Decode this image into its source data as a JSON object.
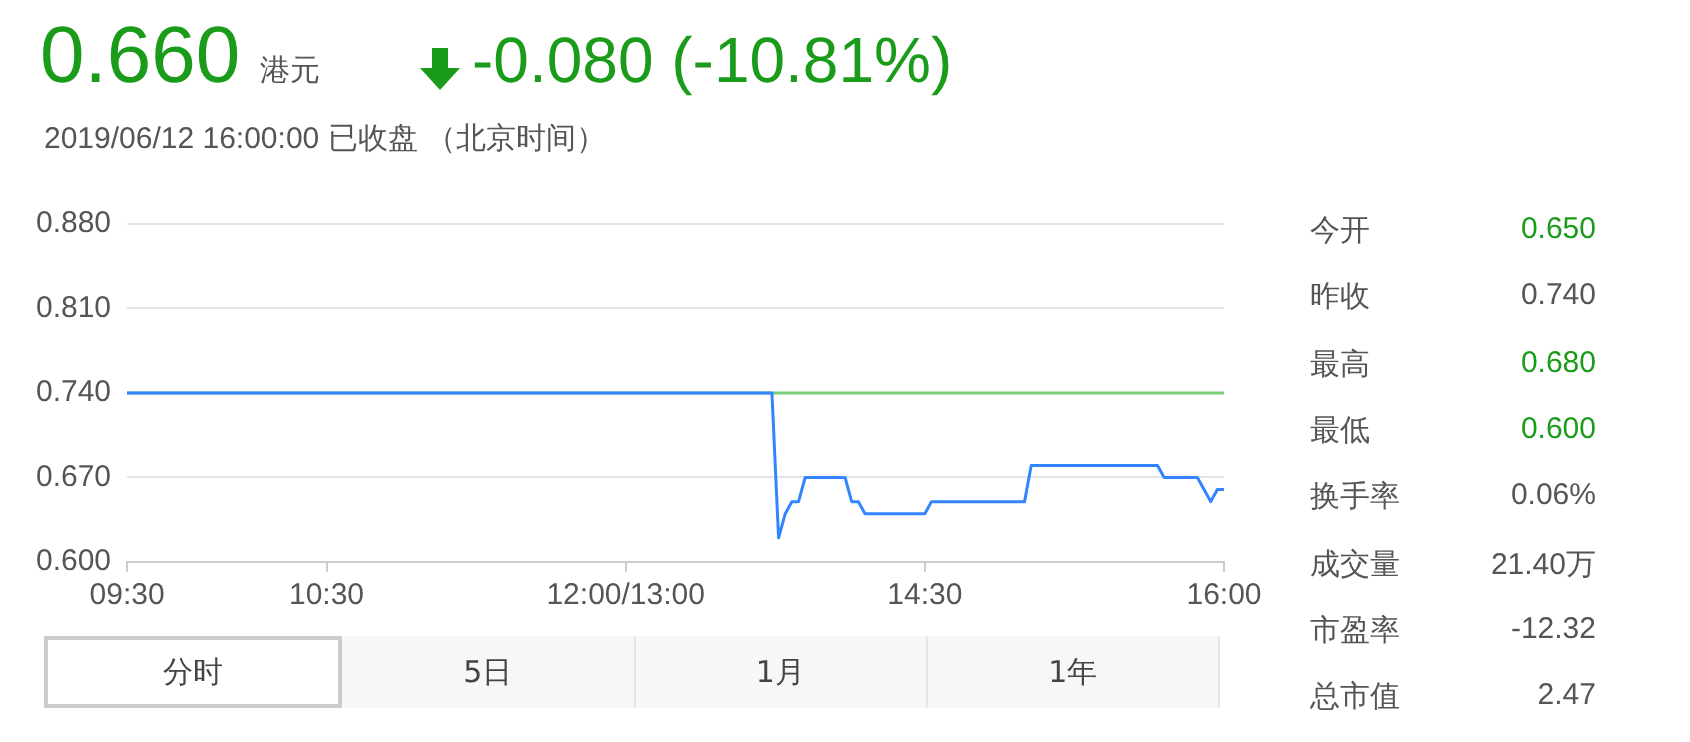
{
  "chart_data": {
    "type": "line",
    "title": "0.660",
    "subtitle": "2019/06/12 16:00:00  已收盘 （北京时间）",
    "annotations": [
      "港元",
      "-0.080 (-10.81%)",
      "今开",
      "0.650",
      "昨收",
      "0.740",
      "最高",
      "0.680",
      "最低",
      "0.600",
      "换手率",
      "0.06%",
      "成交量",
      "21.40万",
      "市盈率",
      "-12.32",
      "总市值",
      "2.47",
      "分时",
      "5日",
      "1月",
      "1年"
    ],
    "categories": [
      "09:30",
      null,
      null,
      null,
      null,
      null,
      null,
      null,
      null,
      null,
      null,
      null,
      null,
      null,
      null,
      null,
      null,
      null,
      null,
      null,
      null,
      null,
      null,
      null,
      null,
      null,
      null,
      null,
      null,
      null,
      "10:30",
      null,
      null,
      null,
      null,
      null,
      null,
      null,
      null,
      null,
      null,
      null,
      null,
      null,
      null,
      null,
      null,
      null,
      null,
      null,
      null,
      null,
      null,
      null,
      null,
      null,
      null,
      null,
      null,
      null,
      null,
      null,
      null,
      null,
      null,
      null,
      null,
      null,
      null,
      null,
      null,
      null,
      null,
      null,
      null,
      "12:00/13:00",
      null,
      null,
      null,
      null,
      null,
      null,
      null,
      null,
      null,
      null,
      null,
      null,
      null,
      null,
      null,
      null,
      null,
      null,
      null,
      null,
      null,
      null,
      null,
      null,
      null,
      null,
      null,
      null,
      null,
      null,
      null,
      null,
      null,
      null,
      null,
      null,
      null,
      null,
      null,
      null,
      null,
      null,
      null,
      null,
      "14:30",
      null,
      null,
      null,
      null,
      null,
      null,
      null,
      null,
      null,
      null,
      null,
      null,
      null,
      null,
      null,
      null,
      null,
      null,
      null,
      null,
      null,
      null,
      null,
      null,
      null,
      null,
      null,
      null,
      null,
      null,
      null,
      null,
      null,
      null,
      null,
      null,
      null,
      null,
      null,
      null,
      null,
      null,
      null,
      null,
      "16:00"
    ],
    "series": [
      {
        "color": "#3385ff",
        "values": [
          0.74,
          0.74,
          0.74,
          0.74,
          0.74,
          0.74,
          0.74,
          0.74,
          0.74,
          0.74,
          0.74,
          0.74,
          0.74,
          0.74,
          0.74,
          0.74,
          0.74,
          0.74,
          0.74,
          0.74,
          0.74,
          0.74,
          0.74,
          0.74,
          0.74,
          0.74,
          0.74,
          0.74,
          0.74,
          0.74,
          0.74,
          0.74,
          0.74,
          0.74,
          0.74,
          0.74,
          0.74,
          0.74,
          0.74,
          0.74,
          0.74,
          0.74,
          0.74,
          0.74,
          0.74,
          0.74,
          0.74,
          0.74,
          0.74,
          0.74,
          0.74,
          0.74,
          0.74,
          0.74,
          0.74,
          0.74,
          0.74,
          0.74,
          0.74,
          0.74,
          0.74,
          0.74,
          0.74,
          0.74,
          0.74,
          0.74,
          0.74,
          0.74,
          0.74,
          0.74,
          0.74,
          0.74,
          0.74,
          0.74,
          0.74,
          0.74,
          0.74,
          0.74,
          0.74,
          0.74,
          0.74,
          0.74,
          0.74,
          0.74,
          0.74,
          0.74,
          0.74,
          0.74,
          0.74,
          0.74,
          0.74,
          0.74,
          0.74,
          0.74,
          0.74,
          0.74,
          0.74,
          0.74,
          0.62,
          0.64,
          0.65,
          0.65,
          0.67,
          0.67,
          0.67,
          0.67,
          0.67,
          0.67,
          0.67,
          0.65,
          0.65,
          0.64,
          0.64,
          0.64,
          0.64,
          0.64,
          0.64,
          0.64,
          0.64,
          0.64,
          0.64,
          0.65,
          0.65,
          0.65,
          0.65,
          0.65,
          0.65,
          0.65,
          0.65,
          0.65,
          0.65,
          0.65,
          0.65,
          0.65,
          0.65,
          0.65,
          0.68,
          0.68,
          0.68,
          0.68,
          0.68,
          0.68,
          0.68,
          0.68,
          0.68,
          0.68,
          0.68,
          0.68,
          0.68,
          0.68,
          0.68,
          0.68,
          0.68,
          0.68,
          0.68,
          0.68,
          0.67,
          0.67,
          0.67,
          0.67,
          0.67,
          0.67,
          0.66,
          0.65,
          0.66,
          0.66
        ]
      }
    ],
    "ref_lines": [
      {
        "axis": "y",
        "value": 0.74,
        "color": "#77cc77"
      }
    ],
    "ylim": [
      0.6,
      0.88
    ],
    "yticks": [
      {
        "value": 0.6,
        "label": "0.600"
      },
      {
        "value": 0.67,
        "label": "0.670"
      },
      {
        "value": 0.74,
        "label": "0.740"
      },
      {
        "value": 0.81,
        "label": "0.810"
      },
      {
        "value": 0.88,
        "label": "0.880"
      }
    ],
    "grid": "y",
    "legend": false,
    "marker": "none",
    "line_style": "solid"
  }
}
